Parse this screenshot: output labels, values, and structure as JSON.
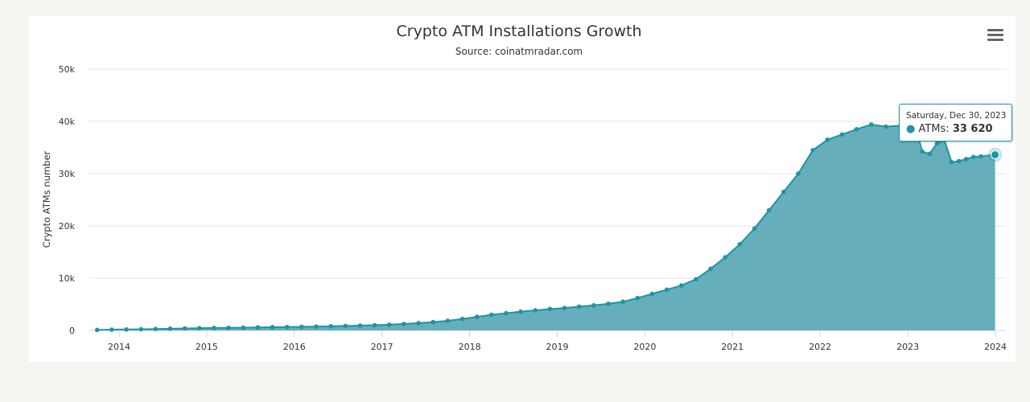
{
  "chart_data": {
    "type": "area",
    "title": "Crypto ATM Installations Growth",
    "subtitle": "Source: coinatmradar.com",
    "ylabel": "Crypto ATMs number",
    "xlabel": "",
    "ylim": [
      0,
      50000
    ],
    "yticks": [
      0,
      10000,
      20000,
      30000,
      40000,
      50000
    ],
    "ytick_labels": [
      "0",
      "10k",
      "20k",
      "30k",
      "40k",
      "50k"
    ],
    "xticks": [
      "2014",
      "2015",
      "2016",
      "2017",
      "2018",
      "2019",
      "2020",
      "2021",
      "2022",
      "2023",
      "2024"
    ],
    "grid": true,
    "legend": "none",
    "color": "#1f94a4",
    "fill_color": "#66aebb",
    "series": [
      {
        "name": "ATMs",
        "points": [
          [
            "2013-10",
            100
          ],
          [
            "2013-12",
            150
          ],
          [
            "2014-02",
            180
          ],
          [
            "2014-04",
            220
          ],
          [
            "2014-06",
            280
          ],
          [
            "2014-08",
            330
          ],
          [
            "2014-10",
            380
          ],
          [
            "2014-12",
            430
          ],
          [
            "2015-02",
            470
          ],
          [
            "2015-04",
            500
          ],
          [
            "2015-06",
            540
          ],
          [
            "2015-08",
            580
          ],
          [
            "2015-10",
            620
          ],
          [
            "2015-12",
            650
          ],
          [
            "2016-02",
            690
          ],
          [
            "2016-04",
            740
          ],
          [
            "2016-06",
            800
          ],
          [
            "2016-08",
            860
          ],
          [
            "2016-10",
            920
          ],
          [
            "2016-12",
            1000
          ],
          [
            "2017-02",
            1100
          ],
          [
            "2017-04",
            1250
          ],
          [
            "2017-06",
            1400
          ],
          [
            "2017-08",
            1600
          ],
          [
            "2017-10",
            1850
          ],
          [
            "2017-12",
            2200
          ],
          [
            "2018-02",
            2600
          ],
          [
            "2018-04",
            3000
          ],
          [
            "2018-06",
            3300
          ],
          [
            "2018-08",
            3600
          ],
          [
            "2018-10",
            3850
          ],
          [
            "2018-12",
            4100
          ],
          [
            "2019-02",
            4300
          ],
          [
            "2019-04",
            4550
          ],
          [
            "2019-06",
            4800
          ],
          [
            "2019-08",
            5100
          ],
          [
            "2019-10",
            5500
          ],
          [
            "2019-12",
            6200
          ],
          [
            "2020-02",
            7000
          ],
          [
            "2020-04",
            7800
          ],
          [
            "2020-06",
            8600
          ],
          [
            "2020-08",
            9800
          ],
          [
            "2020-10",
            11800
          ],
          [
            "2020-12",
            14000
          ],
          [
            "2021-02",
            16500
          ],
          [
            "2021-04",
            19500
          ],
          [
            "2021-06",
            23000
          ],
          [
            "2021-08",
            26500
          ],
          [
            "2021-10",
            30000
          ],
          [
            "2021-12",
            34500
          ],
          [
            "2022-02",
            36500
          ],
          [
            "2022-04",
            37500
          ],
          [
            "2022-06",
            38500
          ],
          [
            "2022-08",
            39400
          ],
          [
            "2022-10",
            39000
          ],
          [
            "2022-12",
            39200
          ],
          [
            "2023-02",
            39000
          ],
          [
            "2023-03",
            34200
          ],
          [
            "2023-04",
            33800
          ],
          [
            "2023-05",
            35800
          ],
          [
            "2023-06",
            36500
          ],
          [
            "2023-07",
            32200
          ],
          [
            "2023-08",
            32400
          ],
          [
            "2023-09",
            32800
          ],
          [
            "2023-10",
            33200
          ],
          [
            "2023-11",
            33300
          ],
          [
            "2023-12-30",
            33620
          ]
        ]
      }
    ],
    "tooltip": {
      "date": "Saturday, Dec 30, 2023",
      "series_label": "ATMs: ",
      "value": "33 620"
    }
  },
  "menu_icon": "hamburger-menu-icon"
}
